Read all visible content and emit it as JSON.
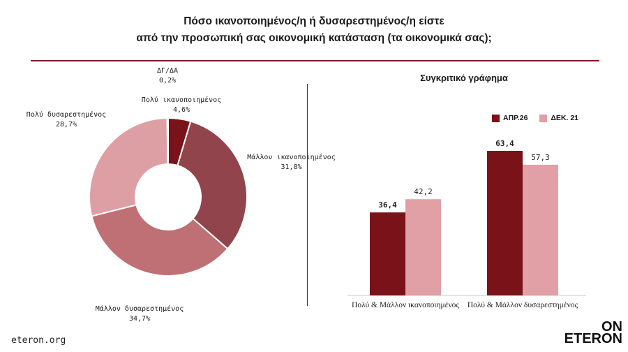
{
  "title_line1": "Πόσο ικανοποιημένος/η ή δυσαρεστημένος/η είστε",
  "title_line2": "από την προσωπική σας οικονομική κατάσταση (τα οικονομικά σας);",
  "footer": "eteron.org",
  "logo": {
    "line1": "ON",
    "line2": "ETERON"
  },
  "chart_data": [
    {
      "type": "pie",
      "donut": true,
      "slices": [
        {
          "label": "Πολύ ικανοποιημένος",
          "value": 4.6,
          "value_label": "4,6%",
          "color": "#7a1319"
        },
        {
          "label": "Μάλλον ικανοποιημένος",
          "value": 31.8,
          "value_label": "31,8%",
          "color": "#92444c"
        },
        {
          "label": "Μάλλον δυσαρεστημένος",
          "value": 34.7,
          "value_label": "34,7%",
          "color": "#bf7074"
        },
        {
          "label": "Πολύ δυσαρεστημένος",
          "value": 28.7,
          "value_label": "28,7%",
          "color": "#de9fa4"
        },
        {
          "label": "ΔΓ/ΔΑ",
          "value": 0.2,
          "value_label": "0,2%",
          "color": "#4a0a0e"
        }
      ]
    },
    {
      "type": "bar",
      "title": "Συγκριτικό γράφημα",
      "categories": [
        "Πολύ  & Μάλλον ικανοποιημένος",
        "Πολύ & Μάλλον δυσαρεστημένος"
      ],
      "series": [
        {
          "name": "ΑΠΡ.26",
          "values": [
            36.4,
            63.4
          ],
          "value_labels": [
            "36,4",
            "63,4"
          ],
          "color": "#7a1319"
        },
        {
          "name": "ΔΕΚ. 21",
          "values": [
            42.2,
            57.3
          ],
          "value_labels": [
            "42,2",
            "57,3"
          ],
          "color": "#e0a0a6"
        }
      ],
      "ylim": [
        0,
        70
      ],
      "legend_position": "top-right",
      "grid": false
    }
  ]
}
